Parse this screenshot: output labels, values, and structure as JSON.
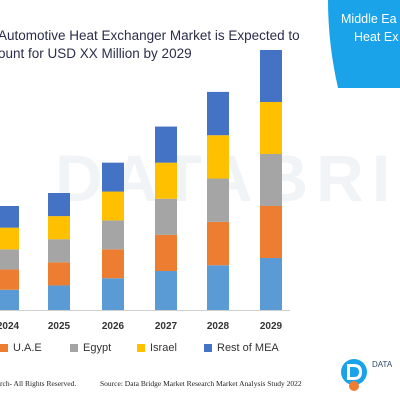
{
  "title": {
    "line1": "Automotive Heat Exchanger Market is Expected to",
    "line2": "ount for USD XX Million by 2029"
  },
  "side_panel": {
    "line1": "Middle Ea",
    "line2": "Heat Ex"
  },
  "footer": {
    "left": "rch- All Rights Reserved.",
    "right": "Source: Data Bridge Market Research Market Analysis Study 2022"
  },
  "watermark": "DATABRI",
  "logo_text": "DATA",
  "colors": {
    "uae": "#ed7d31",
    "egypt": "#a5a5a5",
    "israel": "#ffc000",
    "rest_of_mea": "#4472c4",
    "first_segment": "#5b9bd5",
    "panel": "#1aa3e8"
  },
  "chart_data": {
    "type": "bar",
    "stacked": true,
    "categories": [
      "2024",
      "2025",
      "2026",
      "2027",
      "2028",
      "2029"
    ],
    "series": [
      {
        "name": "",
        "values": [
          14,
          17,
          22,
          27,
          31,
          36
        ]
      },
      {
        "name": "U.A.E",
        "values": [
          14,
          16,
          20,
          25,
          30,
          36
        ]
      },
      {
        "name": "Egypt",
        "values": [
          14,
          16,
          20,
          25,
          30,
          36
        ]
      },
      {
        "name": "Israel",
        "values": [
          15,
          16,
          20,
          25,
          30,
          36
        ]
      },
      {
        "name": "Rest of MEA",
        "values": [
          15,
          16,
          20,
          25,
          30,
          36
        ]
      }
    ],
    "xlabel": "",
    "ylabel": "",
    "ylim": [
      0,
      180
    ],
    "grid": false,
    "legend": {
      "position": "bottom",
      "entries": [
        "U.A.E",
        "Egypt",
        "Israel",
        "Rest of MEA"
      ]
    }
  }
}
